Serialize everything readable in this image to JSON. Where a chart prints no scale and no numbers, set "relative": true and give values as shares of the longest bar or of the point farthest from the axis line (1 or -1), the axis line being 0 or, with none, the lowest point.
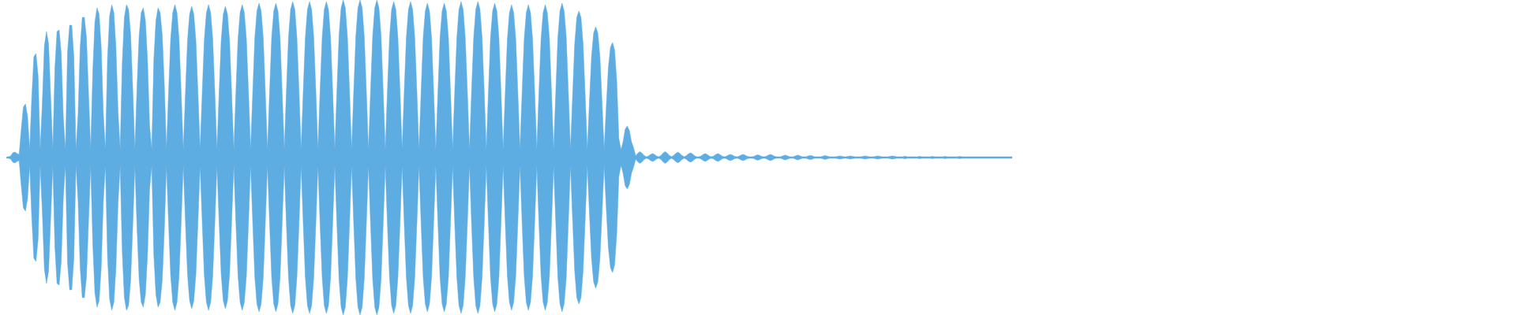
{
  "chart_data": {
    "type": "area",
    "relative": true,
    "categories": [
      null,
      null,
      null,
      null,
      null,
      null,
      null,
      null,
      null,
      null,
      null,
      null,
      null,
      null,
      null,
      null,
      null,
      null,
      null,
      null,
      null,
      null,
      null,
      null,
      null,
      null,
      null,
      null,
      null,
      null,
      null,
      null,
      null,
      null,
      null,
      null,
      null,
      null,
      null,
      null,
      null,
      null,
      null,
      null,
      null,
      null,
      null,
      null,
      null,
      null,
      null,
      null,
      null,
      null,
      null,
      null,
      null,
      null,
      null,
      null,
      null,
      null,
      null,
      null,
      null,
      null,
      null,
      null,
      null,
      null,
      null,
      null,
      null,
      null,
      null,
      null,
      null,
      null,
      null,
      null,
      null,
      null,
      null,
      null,
      null,
      null,
      null,
      null,
      null,
      null,
      null,
      null,
      null,
      null,
      null,
      null,
      null,
      null,
      null,
      null,
      null,
      null,
      null,
      null,
      null,
      null,
      null,
      null,
      null,
      null,
      null,
      null,
      null,
      null,
      null,
      null,
      null,
      null,
      null,
      null,
      null,
      null,
      null,
      null,
      null,
      null,
      null,
      null,
      null,
      null,
      null,
      null,
      null,
      null,
      null,
      null,
      null,
      null,
      null,
      null,
      null,
      null,
      null,
      null,
      null,
      null,
      null,
      null,
      null,
      null,
      null,
      null,
      null,
      null,
      null,
      null,
      null,
      null,
      null,
      null,
      null,
      null,
      null,
      null,
      null,
      null,
      null,
      null,
      null,
      null,
      null,
      null,
      null,
      null,
      null,
      null,
      null,
      null,
      null,
      null,
      null,
      null,
      null,
      null,
      null,
      null,
      null,
      null,
      null,
      null,
      null,
      null,
      null,
      null,
      null,
      null,
      null,
      null,
      null,
      null,
      null,
      null,
      null,
      null,
      null,
      null,
      null,
      null,
      null,
      null,
      null,
      null,
      null,
      null,
      null,
      null,
      null,
      null,
      null,
      null,
      null,
      null,
      null,
      null,
      null,
      null,
      null,
      null,
      null,
      null,
      null,
      null,
      null,
      null,
      null,
      null,
      null,
      null,
      null,
      null,
      null,
      null,
      null,
      null,
      null,
      null,
      null,
      null,
      null,
      null,
      null,
      null,
      null,
      null,
      null,
      null,
      null,
      null,
      null,
      null,
      null,
      null,
      null,
      null,
      null,
      null,
      null,
      null,
      null,
      null,
      null,
      null,
      null,
      null,
      null,
      null,
      null,
      null,
      null,
      null,
      null,
      null,
      null,
      null,
      null,
      null,
      null,
      null,
      null,
      null,
      null,
      null,
      null,
      null,
      null,
      null,
      null,
      null,
      null,
      null,
      null,
      null,
      null,
      null,
      null,
      null,
      null,
      null,
      null,
      null,
      null,
      null,
      null,
      null,
      null,
      null,
      null,
      null,
      null,
      null,
      null,
      null,
      null,
      null,
      null,
      null,
      null,
      null,
      null,
      null,
      null,
      null,
      null,
      null,
      null,
      null,
      null,
      null,
      null,
      null,
      null,
      null,
      null,
      null,
      null,
      null,
      null,
      null,
      null,
      null,
      null,
      null,
      null,
      null,
      null,
      null,
      null,
      null,
      null,
      null,
      null,
      null,
      null,
      null,
      null,
      null,
      null,
      null,
      null,
      null,
      null,
      null,
      null,
      null,
      null,
      null,
      null,
      null,
      null,
      null,
      null,
      null,
      null,
      null,
      null,
      null,
      null,
      null,
      null,
      null,
      null,
      null,
      null,
      null,
      null,
      null,
      null,
      null,
      null,
      null,
      null,
      null,
      null,
      null,
      null,
      null,
      null,
      null,
      null,
      null,
      null,
      null,
      null,
      null,
      null,
      null,
      null,
      null,
      null,
      null,
      null,
      null,
      null,
      null,
      null,
      null,
      null,
      null,
      null,
      null,
      null,
      null,
      null,
      null,
      null,
      null,
      null,
      null,
      null,
      null,
      null,
      null,
      null,
      null,
      null,
      null,
      null,
      null,
      null,
      null,
      null,
      null,
      null,
      null,
      null,
      null,
      null,
      null,
      null,
      null,
      null,
      null,
      null,
      null,
      null,
      null,
      null,
      null,
      null,
      null,
      null,
      null,
      null,
      null,
      null,
      null,
      null,
      null,
      null
    ],
    "series": [
      {
        "color": "#5dace2",
        "values": [
          0.005,
          0.005,
          0.01,
          0.03,
          0.035,
          0.025,
          0.02,
          0.18,
          0.32,
          0.34,
          0.26,
          0.05,
          0.38,
          0.64,
          0.66,
          0.52,
          0.05,
          0.34,
          0.71,
          0.8,
          0.72,
          0.38,
          0.05,
          0.57,
          0.8,
          0.81,
          0.66,
          0.25,
          0.05,
          0.67,
          0.84,
          0.84,
          0.64,
          0.05,
          0.27,
          0.7,
          0.89,
          0.89,
          0.76,
          0.4,
          0.05,
          0.55,
          0.86,
          0.95,
          0.91,
          0.7,
          0.28,
          0.05,
          0.63,
          0.9,
          0.97,
          0.92,
          0.7,
          0.29,
          0.05,
          0.6,
          0.89,
          0.97,
          0.94,
          0.78,
          0.43,
          0.05,
          0.44,
          0.77,
          0.92,
          0.95,
          0.87,
          0.62,
          0.2,
          0.05,
          0.62,
          0.87,
          0.95,
          0.92,
          0.78,
          0.46,
          0.05,
          0.41,
          0.75,
          0.92,
          0.97,
          0.92,
          0.75,
          0.41,
          0.05,
          0.4,
          0.74,
          0.91,
          0.96,
          0.91,
          0.74,
          0.4,
          0.05,
          0.41,
          0.75,
          0.92,
          0.97,
          0.92,
          0.75,
          0.41,
          0.05,
          0.4,
          0.74,
          0.91,
          0.96,
          0.91,
          0.74,
          0.4,
          0.05,
          0.41,
          0.75,
          0.92,
          0.97,
          0.92,
          0.75,
          0.41,
          0.05,
          0.41,
          0.76,
          0.93,
          0.98,
          0.93,
          0.76,
          0.41,
          0.05,
          0.41,
          0.76,
          0.93,
          0.98,
          0.93,
          0.76,
          0.41,
          0.05,
          0.42,
          0.76,
          0.94,
          0.99,
          0.94,
          0.76,
          0.42,
          0.05,
          0.42,
          0.76,
          0.94,
          0.99,
          0.94,
          0.76,
          0.42,
          0.05,
          0.42,
          0.76,
          0.94,
          0.99,
          0.94,
          0.76,
          0.42,
          0.05,
          0.42,
          0.77,
          0.95,
          1,
          0.95,
          0.77,
          0.42,
          0.05,
          0.42,
          0.77,
          0.95,
          1,
          0.95,
          0.77,
          0.42,
          0.05,
          0.42,
          0.77,
          0.95,
          1,
          0.95,
          0.77,
          0.42,
          0.05,
          0.42,
          0.76,
          0.94,
          0.99,
          0.94,
          0.76,
          0.42,
          0.05,
          0.42,
          0.76,
          0.94,
          0.99,
          0.94,
          0.76,
          0.42,
          0.05,
          0.41,
          0.76,
          0.93,
          0.98,
          0.93,
          0.76,
          0.41,
          0.05,
          0.41,
          0.76,
          0.93,
          0.98,
          0.93,
          0.76,
          0.41,
          0.05,
          0.42,
          0.76,
          0.94,
          0.99,
          0.94,
          0.76,
          0.42,
          0.05,
          0.42,
          0.76,
          0.94,
          0.99,
          0.94,
          0.76,
          0.42,
          0.05,
          0.41,
          0.76,
          0.93,
          0.98,
          0.93,
          0.76,
          0.41,
          0.05,
          0.41,
          0.75,
          0.92,
          0.97,
          0.92,
          0.75,
          0.41,
          0.05,
          0.41,
          0.75,
          0.92,
          0.97,
          0.92,
          0.75,
          0.41,
          0.05,
          0.41,
          0.75,
          0.92,
          0.97,
          0.92,
          0.75,
          0.41,
          0.05,
          0.41,
          0.76,
          0.93,
          0.98,
          0.93,
          0.76,
          0.41,
          0.05,
          0.39,
          0.72,
          0.89,
          0.93,
          0.89,
          0.72,
          0.39,
          0.05,
          0.35,
          0.64,
          0.79,
          0.83,
          0.79,
          0.64,
          0.35,
          0.05,
          0.32,
          0.57,
          0.7,
          0.73,
          0.68,
          0.48,
          0.12,
          0.05,
          0.1,
          0.18,
          0.2,
          0.17,
          0.1,
          0.06,
          0.01,
          0.028,
          0.037,
          0.028,
          0.013,
          0.005,
          0.009,
          0.019,
          0.025,
          0.019,
          0.009,
          0.005,
          0.013,
          0.028,
          0.037,
          0.028,
          0.013,
          0.005,
          0.012,
          0.026,
          0.034,
          0.026,
          0.012,
          0.005,
          0.011,
          0.023,
          0.03,
          0.023,
          0.011,
          0.005,
          0.005,
          0.009,
          0.019,
          0.025,
          0.019,
          0.009,
          0.005,
          0.009,
          0.019,
          0.025,
          0.019,
          0.009,
          0.005,
          0.007,
          0.015,
          0.02,
          0.015,
          0.007,
          0.005,
          0.007,
          0.015,
          0.02,
          0.015,
          0.007,
          0.005,
          0.005,
          0.006,
          0.013,
          0.017,
          0.013,
          0.006,
          0.005,
          0.007,
          0.015,
          0.02,
          0.015,
          0.007,
          0.005,
          0.005,
          0.005,
          0.011,
          0.015,
          0.011,
          0.005,
          0.005,
          0.005,
          0.011,
          0.015,
          0.011,
          0.005,
          0.005,
          0.005,
          0.01,
          0.013,
          0.01,
          0.005,
          0.005,
          0.005,
          0.005,
          0.009,
          0.012,
          0.009,
          0.005,
          0.005,
          0.005,
          0.005,
          0.008,
          0.01,
          0.008,
          0.005,
          0.005,
          0.008,
          0.01,
          0.008,
          0.005,
          0.005,
          0.005,
          0.005,
          0.008,
          0.01,
          0.008,
          0.005,
          0.005,
          0.005,
          0.008,
          0.01,
          0.008,
          0.005,
          0.005,
          0.005,
          0.005,
          0.008,
          0.01,
          0.008,
          0.005,
          0.005,
          0.005,
          0.005,
          0.009,
          0.005,
          0.005,
          0.005,
          0.005,
          0.005,
          0.005,
          0.008,
          0.005,
          0.005,
          0.005,
          0.005,
          0.005,
          0.007,
          0.005,
          0.005,
          0.005,
          0.005,
          0.005,
          0.007,
          0.005,
          0.005,
          0.005,
          0.005,
          0.005,
          0.005,
          0.007,
          0.005,
          0.005,
          0.005,
          0.005,
          0.005,
          0.005,
          0.005,
          0.005,
          0.005,
          0.005,
          0.005,
          0.005,
          0.005,
          0.005,
          0.005,
          0.005,
          0.005,
          0.005,
          0.005,
          0.005,
          0.005,
          0.005,
          0.005,
          0.005,
          0.005
        ]
      },
      {
        "color": "#5dace2",
        "values": [
          -0.005,
          -0.005,
          -0.01,
          -0.03,
          -0.035,
          -0.025,
          -0.02,
          -0.18,
          -0.32,
          -0.34,
          -0.26,
          -0.05,
          -0.38,
          -0.64,
          -0.66,
          -0.52,
          -0.05,
          -0.34,
          -0.71,
          -0.8,
          -0.72,
          -0.38,
          -0.05,
          -0.57,
          -0.8,
          -0.81,
          -0.66,
          -0.25,
          -0.05,
          -0.67,
          -0.84,
          -0.84,
          -0.64,
          -0.05,
          -0.27,
          -0.7,
          -0.89,
          -0.89,
          -0.76,
          -0.4,
          -0.05,
          -0.55,
          -0.86,
          -0.95,
          -0.91,
          -0.7,
          -0.28,
          -0.05,
          -0.63,
          -0.9,
          -0.97,
          -0.92,
          -0.7,
          -0.29,
          -0.05,
          -0.6,
          -0.89,
          -0.97,
          -0.94,
          -0.78,
          -0.43,
          -0.05,
          -0.44,
          -0.77,
          -0.92,
          -0.95,
          -0.87,
          -0.62,
          -0.2,
          -0.05,
          -0.62,
          -0.87,
          -0.95,
          -0.92,
          -0.78,
          -0.46,
          -0.05,
          -0.41,
          -0.75,
          -0.92,
          -0.97,
          -0.92,
          -0.75,
          -0.41,
          -0.05,
          -0.4,
          -0.74,
          -0.91,
          -0.96,
          -0.91,
          -0.74,
          -0.4,
          -0.05,
          -0.41,
          -0.75,
          -0.92,
          -0.97,
          -0.92,
          -0.75,
          -0.41,
          -0.05,
          -0.4,
          -0.74,
          -0.91,
          -0.96,
          -0.91,
          -0.74,
          -0.4,
          -0.05,
          -0.41,
          -0.75,
          -0.92,
          -0.97,
          -0.92,
          -0.75,
          -0.41,
          -0.05,
          -0.41,
          -0.76,
          -0.93,
          -0.98,
          -0.93,
          -0.76,
          -0.41,
          -0.05,
          -0.41,
          -0.76,
          -0.93,
          -0.98,
          -0.93,
          -0.76,
          -0.41,
          -0.05,
          -0.42,
          -0.76,
          -0.94,
          -0.99,
          -0.94,
          -0.76,
          -0.42,
          -0.05,
          -0.42,
          -0.76,
          -0.94,
          -0.99,
          -0.94,
          -0.76,
          -0.42,
          -0.05,
          -0.42,
          -0.76,
          -0.94,
          -0.99,
          -0.94,
          -0.76,
          -0.42,
          -0.05,
          -0.42,
          -0.77,
          -0.95,
          -1,
          -0.95,
          -0.77,
          -0.42,
          -0.05,
          -0.42,
          -0.77,
          -0.95,
          -1,
          -0.95,
          -0.77,
          -0.42,
          -0.05,
          -0.42,
          -0.77,
          -0.95,
          -1,
          -0.95,
          -0.77,
          -0.42,
          -0.05,
          -0.42,
          -0.76,
          -0.94,
          -0.99,
          -0.94,
          -0.76,
          -0.42,
          -0.05,
          -0.42,
          -0.76,
          -0.94,
          -0.99,
          -0.94,
          -0.76,
          -0.42,
          -0.05,
          -0.41,
          -0.76,
          -0.93,
          -0.98,
          -0.93,
          -0.76,
          -0.41,
          -0.05,
          -0.41,
          -0.76,
          -0.93,
          -0.98,
          -0.93,
          -0.76,
          -0.41,
          -0.05,
          -0.42,
          -0.76,
          -0.94,
          -0.99,
          -0.94,
          -0.76,
          -0.42,
          -0.05,
          -0.42,
          -0.76,
          -0.94,
          -0.99,
          -0.94,
          -0.76,
          -0.42,
          -0.05,
          -0.41,
          -0.76,
          -0.93,
          -0.98,
          -0.93,
          -0.76,
          -0.41,
          -0.05,
          -0.41,
          -0.75,
          -0.92,
          -0.97,
          -0.92,
          -0.75,
          -0.41,
          -0.05,
          -0.41,
          -0.75,
          -0.92,
          -0.97,
          -0.92,
          -0.75,
          -0.41,
          -0.05,
          -0.41,
          -0.75,
          -0.92,
          -0.97,
          -0.92,
          -0.75,
          -0.41,
          -0.05,
          -0.41,
          -0.76,
          -0.93,
          -0.98,
          -0.93,
          -0.76,
          -0.41,
          -0.05,
          -0.39,
          -0.72,
          -0.89,
          -0.93,
          -0.89,
          -0.72,
          -0.39,
          -0.05,
          -0.35,
          -0.64,
          -0.79,
          -0.83,
          -0.79,
          -0.64,
          -0.35,
          -0.05,
          -0.32,
          -0.57,
          -0.7,
          -0.73,
          -0.68,
          -0.48,
          -0.12,
          -0.05,
          -0.1,
          -0.18,
          -0.2,
          -0.17,
          -0.1,
          -0.06,
          -0.01,
          -0.028,
          -0.037,
          -0.028,
          -0.013,
          -0.005,
          -0.009,
          -0.019,
          -0.025,
          -0.019,
          -0.009,
          -0.005,
          -0.013,
          -0.028,
          -0.037,
          -0.028,
          -0.013,
          -0.005,
          -0.012,
          -0.026,
          -0.034,
          -0.026,
          -0.012,
          -0.005,
          -0.011,
          -0.023,
          -0.03,
          -0.023,
          -0.011,
          -0.005,
          -0.005,
          -0.009,
          -0.019,
          -0.025,
          -0.019,
          -0.009,
          -0.005,
          -0.009,
          -0.019,
          -0.025,
          -0.019,
          -0.009,
          -0.005,
          -0.007,
          -0.015,
          -0.02,
          -0.015,
          -0.007,
          -0.005,
          -0.007,
          -0.015,
          -0.02,
          -0.015,
          -0.007,
          -0.005,
          -0.005,
          -0.006,
          -0.013,
          -0.017,
          -0.013,
          -0.006,
          -0.005,
          -0.007,
          -0.015,
          -0.02,
          -0.015,
          -0.007,
          -0.005,
          -0.005,
          -0.005,
          -0.011,
          -0.015,
          -0.011,
          -0.005,
          -0.005,
          -0.005,
          -0.011,
          -0.015,
          -0.011,
          -0.005,
          -0.005,
          -0.005,
          -0.01,
          -0.013,
          -0.01,
          -0.005,
          -0.005,
          -0.005,
          -0.005,
          -0.009,
          -0.012,
          -0.009,
          -0.005,
          -0.005,
          -0.005,
          -0.005,
          -0.008,
          -0.01,
          -0.008,
          -0.005,
          -0.005,
          -0.008,
          -0.01,
          -0.008,
          -0.005,
          -0.005,
          -0.005,
          -0.005,
          -0.008,
          -0.01,
          -0.008,
          -0.005,
          -0.005,
          -0.005,
          -0.008,
          -0.01,
          -0.008,
          -0.005,
          -0.005,
          -0.005,
          -0.005,
          -0.008,
          -0.01,
          -0.008,
          -0.005,
          -0.005,
          -0.005,
          -0.005,
          -0.009,
          -0.005,
          -0.005,
          -0.005,
          -0.005,
          -0.005,
          -0.005,
          -0.008,
          -0.005,
          -0.005,
          -0.005,
          -0.005,
          -0.005,
          -0.007,
          -0.005,
          -0.005,
          -0.005,
          -0.005,
          -0.005,
          -0.007,
          -0.005,
          -0.005,
          -0.005,
          -0.005,
          -0.005,
          -0.005,
          -0.007,
          -0.005,
          -0.005,
          -0.005,
          -0.005,
          -0.005,
          -0.005,
          -0.005,
          -0.005,
          -0.005,
          -0.005,
          -0.005,
          -0.005,
          -0.005,
          -0.005,
          -0.005,
          -0.005,
          -0.005,
          -0.005,
          -0.005,
          -0.005,
          -0.005,
          -0.005,
          -0.005,
          -0.005,
          -0.005
        ]
      }
    ]
  }
}
